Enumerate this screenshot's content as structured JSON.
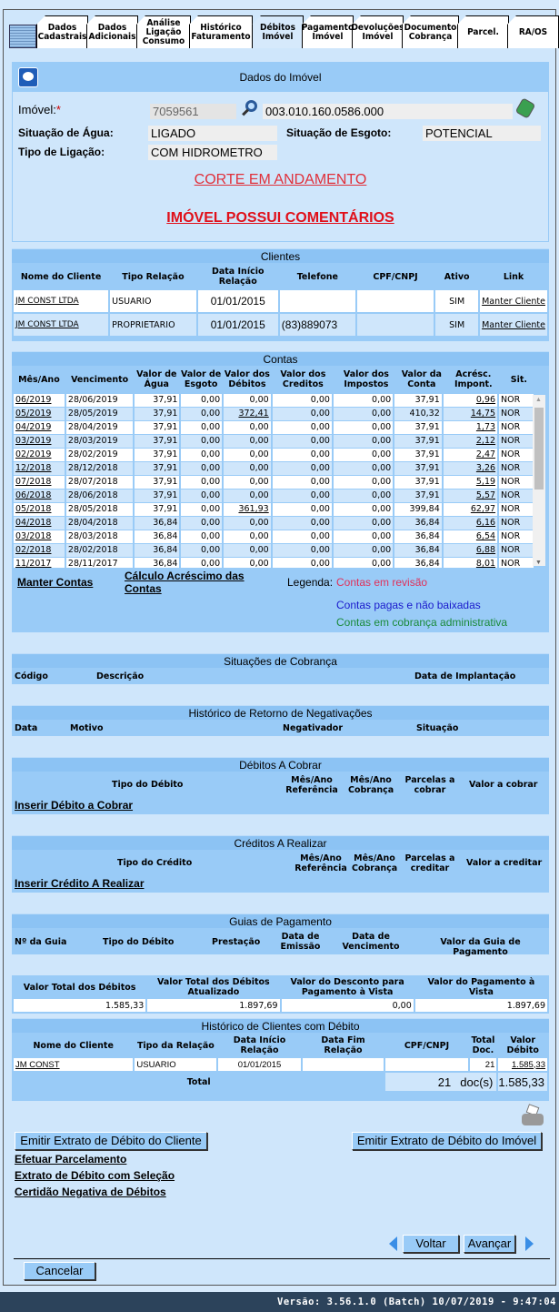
{
  "tabs": [
    "Dados Cadastrais",
    "Dados Adicionais",
    "Análise Ligação Consumo",
    "Histórico Faturamento",
    "Débitos Imóvel",
    "Pagamento Imóvel",
    "Devoluções Imóvel",
    "Documento Cobrança",
    "Parcel.",
    "RA/OS"
  ],
  "active_tab": "Débitos Imóvel",
  "imovel": {
    "title": "Dados do Imóvel",
    "imovel_label": "Imóvel:",
    "required_mark": "*",
    "matricula": "7059561",
    "inscricao": "003.010.160.0586.000",
    "agua_label": "Situação de Água:",
    "agua": "LIGADO",
    "esgoto_label": "Situação de Esgoto:",
    "esgoto": "POTENCIAL",
    "ligacao_label": "Tipo de Ligação:",
    "ligacao": "COM HIDROMETRO",
    "alert1": "CORTE EM ANDAMENTO",
    "alert2": "IMÓVEL POSSUI COMENTÁRIOS"
  },
  "clientes": {
    "title": "Clientes",
    "headers": [
      "Nome do Cliente",
      "Tipo Relação",
      "Data Início Relação",
      "Telefone",
      "CPF/CNPJ",
      "Ativo",
      "Link"
    ],
    "rows": [
      [
        "JM CONST LTDA",
        "USUARIO",
        "01/01/2015",
        "",
        "",
        "SIM",
        "Manter Cliente"
      ],
      [
        "JM CONST LTDA",
        "PROPRIETARIO",
        "01/01/2015",
        "(83)889073",
        "",
        "SIM",
        "Manter Cliente"
      ]
    ]
  },
  "contas": {
    "title": "Contas",
    "headers": [
      "Mês/Ano",
      "Vencimento",
      "Valor de Água",
      "Valor de Esgoto",
      "Valor dos Débitos",
      "Valor dos Creditos",
      "Valor dos Impostos",
      "Valor da Conta",
      "Acrésc. Impont.",
      "Sit."
    ],
    "rows": [
      [
        "06/2019",
        "28/06/2019",
        "37,91",
        "0,00",
        "0,00",
        "0,00",
        "0,00",
        "37,91",
        "0,96",
        "NOR"
      ],
      [
        "05/2019",
        "28/05/2019",
        "37,91",
        "0,00",
        "372,41",
        "0,00",
        "0,00",
        "410,32",
        "14,75",
        "NOR"
      ],
      [
        "04/2019",
        "28/04/2019",
        "37,91",
        "0,00",
        "0,00",
        "0,00",
        "0,00",
        "37,91",
        "1,73",
        "NOR"
      ],
      [
        "03/2019",
        "28/03/2019",
        "37,91",
        "0,00",
        "0,00",
        "0,00",
        "0,00",
        "37,91",
        "2,12",
        "NOR"
      ],
      [
        "02/2019",
        "28/02/2019",
        "37,91",
        "0,00",
        "0,00",
        "0,00",
        "0,00",
        "37,91",
        "2,47",
        "NOR"
      ],
      [
        "12/2018",
        "28/12/2018",
        "37,91",
        "0,00",
        "0,00",
        "0,00",
        "0,00",
        "37,91",
        "3,26",
        "NOR"
      ],
      [
        "07/2018",
        "28/07/2018",
        "37,91",
        "0,00",
        "0,00",
        "0,00",
        "0,00",
        "37,91",
        "5,19",
        "NOR"
      ],
      [
        "06/2018",
        "28/06/2018",
        "37,91",
        "0,00",
        "0,00",
        "0,00",
        "0,00",
        "37,91",
        "5,57",
        "NOR"
      ],
      [
        "05/2018",
        "28/05/2018",
        "37,91",
        "0,00",
        "361,93",
        "0,00",
        "0,00",
        "399,84",
        "62,97",
        "NOR"
      ],
      [
        "04/2018",
        "28/04/2018",
        "36,84",
        "0,00",
        "0,00",
        "0,00",
        "0,00",
        "36,84",
        "6,16",
        "NOR"
      ],
      [
        "03/2018",
        "28/03/2018",
        "36,84",
        "0,00",
        "0,00",
        "0,00",
        "0,00",
        "36,84",
        "6,54",
        "NOR"
      ],
      [
        "02/2018",
        "28/02/2018",
        "36,84",
        "0,00",
        "0,00",
        "0,00",
        "0,00",
        "36,84",
        "6,88",
        "NOR"
      ],
      [
        "11/2017",
        "28/11/2017",
        "36,84",
        "0,00",
        "0,00",
        "0,00",
        "0,00",
        "36,84",
        "8,01",
        "NOR"
      ]
    ],
    "manter": "Manter Contas",
    "calculo": "Cálculo Acréscimo das Contas",
    "legenda": "Legenda:",
    "leg_revisao": "Contas em revisão",
    "leg_pagas": "Contas pagas e não baixadas",
    "leg_cobranca": "Contas em cobrança administrativa",
    "colors": {
      "revisao": "#e0305a",
      "pagas": "#1a1acc",
      "cobranca": "#1a8a3a"
    }
  },
  "situacoes": {
    "title": "Situações de Cobrança",
    "headers": [
      "Código",
      "Descrição",
      "Data de Implantação"
    ]
  },
  "negativacoes": {
    "title": "Histórico de Retorno de Negativações",
    "headers": [
      "Data",
      "Motivo",
      "Negativador",
      "Situação"
    ]
  },
  "debitos": {
    "title": "Débitos A Cobrar",
    "headers": [
      "Tipo do Débito",
      "Mês/Ano Referência",
      "Mês/Ano Cobrança",
      "Parcelas a cobrar",
      "Valor a cobrar"
    ],
    "link": "Inserir Débito a Cobrar"
  },
  "creditos": {
    "title": "Créditos A Realizar",
    "headers": [
      "Tipo do Crédito",
      "Mês/Ano Referência",
      "Mês/Ano Cobrança",
      "Parcelas a creditar",
      "Valor a creditar"
    ],
    "link": "Inserir Crédito A Realizar"
  },
  "guias": {
    "title": "Guias de Pagamento",
    "headers": [
      "Nº da Guia",
      "Tipo do Débito",
      "Prestação",
      "Data de Emissão",
      "Data de Vencimento",
      "Valor da Guia de Pagamento"
    ]
  },
  "totais": {
    "headers": [
      "Valor Total dos Débitos",
      "Valor Total dos Débitos Atualizado",
      "Valor do Desconto para Pagamento à Vista",
      "Valor do Pagamento à Vista"
    ],
    "values": [
      "1.585,33",
      "1.897,69",
      "0,00",
      "1.897,69"
    ]
  },
  "historico": {
    "title": "Histórico de Clientes com Débito",
    "headers": [
      "Nome do Cliente",
      "Tipo da Relação",
      "Data Início Relação",
      "Data Fim Relação",
      "CPF/CNPJ",
      "Total Doc.",
      "Valor Débito"
    ],
    "row": [
      "JM CONST",
      "USUARIO",
      "01/01/2015",
      "",
      "",
      "21",
      "1.585,33"
    ],
    "total_label": "Total",
    "total_docs": "21",
    "docs_unit": "doc(s)",
    "total_valor": "1.585,33"
  },
  "actions": {
    "extrato_cliente": "Emitir Extrato de Débito do Cliente",
    "extrato_imovel": "Emitir Extrato de Débito do Imóvel",
    "parcelamento": "Efetuar Parcelamento",
    "extrato_selecao": "Extrato de Débito com Seleção",
    "certidao": "Certidão Negativa de Débitos",
    "voltar": "Voltar",
    "avancar": "Avançar",
    "cancelar": "Cancelar"
  },
  "footer": {
    "version": "Versão: 3.56.1.0 (Batch) 10/07/2019 - 9:47:04"
  }
}
